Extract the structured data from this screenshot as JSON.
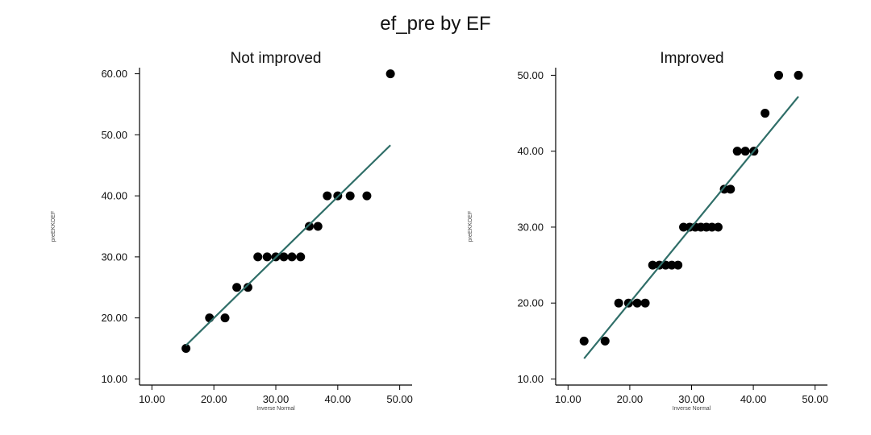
{
  "chart_data": [
    {
      "type": "scatter",
      "title": "ef_pre by EF",
      "panel_title": "Not improved",
      "xlabel": "Inverse Normal",
      "ylabel": "preEKKOEF",
      "xlim": [
        8,
        52
      ],
      "ylim": [
        9,
        61
      ],
      "xticks": [
        "10.00",
        "20.00",
        "30.00",
        "40.00",
        "50.00"
      ],
      "yticks": [
        "10.00",
        "20.00",
        "30.00",
        "40.00",
        "50.00",
        "60.00"
      ],
      "grid": false,
      "points": [
        [
          15.5,
          15
        ],
        [
          19.3,
          20
        ],
        [
          21.8,
          20
        ],
        [
          23.7,
          25
        ],
        [
          25.5,
          25
        ],
        [
          27.1,
          30
        ],
        [
          28.6,
          30
        ],
        [
          30.0,
          30
        ],
        [
          31.3,
          30
        ],
        [
          32.6,
          30
        ],
        [
          34.0,
          30
        ],
        [
          35.4,
          35
        ],
        [
          36.8,
          35
        ],
        [
          38.3,
          40
        ],
        [
          40.0,
          40
        ],
        [
          42.0,
          40
        ],
        [
          44.7,
          40
        ],
        [
          48.5,
          60
        ]
      ],
      "fit_line": {
        "x": [
          15.5,
          48.5
        ],
        "y": [
          15.5,
          48.3
        ],
        "color": "#2f6e68"
      },
      "point_color": "#000000"
    },
    {
      "type": "scatter",
      "panel_title": "Improved",
      "xlabel": "Inverse Normal",
      "ylabel": "preEKKOEF",
      "xlim": [
        8,
        52
      ],
      "ylim": [
        9.2,
        51
      ],
      "xticks": [
        "10.00",
        "20.00",
        "30.00",
        "40.00",
        "50.00"
      ],
      "yticks": [
        "10.00",
        "20.00",
        "30.00",
        "40.00",
        "50.00"
      ],
      "grid": false,
      "points": [
        [
          12.6,
          15
        ],
        [
          16.0,
          15
        ],
        [
          18.2,
          20
        ],
        [
          19.8,
          20
        ],
        [
          21.2,
          20
        ],
        [
          22.5,
          20
        ],
        [
          23.7,
          25
        ],
        [
          24.8,
          25
        ],
        [
          25.8,
          25
        ],
        [
          26.8,
          25
        ],
        [
          27.8,
          25
        ],
        [
          28.7,
          30
        ],
        [
          29.7,
          30
        ],
        [
          30.6,
          30
        ],
        [
          31.5,
          30
        ],
        [
          32.4,
          30
        ],
        [
          33.3,
          30
        ],
        [
          34.3,
          30
        ],
        [
          35.3,
          35
        ],
        [
          36.3,
          35
        ],
        [
          37.4,
          40
        ],
        [
          38.7,
          40
        ],
        [
          40.1,
          40
        ],
        [
          41.9,
          45
        ],
        [
          44.1,
          50
        ],
        [
          47.3,
          50
        ]
      ],
      "fit_line": {
        "x": [
          12.6,
          47.3
        ],
        "y": [
          12.7,
          47.2
        ],
        "color": "#2f6e68"
      },
      "point_color": "#000000"
    }
  ]
}
